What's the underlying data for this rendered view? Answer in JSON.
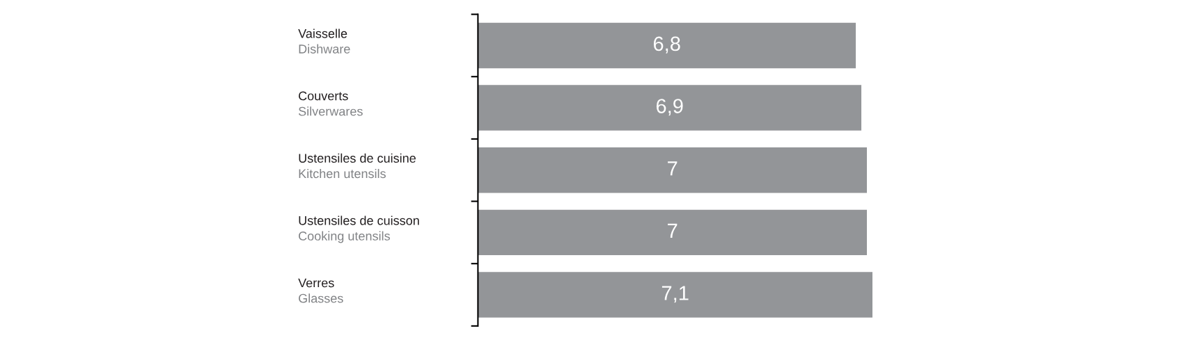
{
  "chart_data": {
    "type": "bar",
    "orientation": "horizontal",
    "categories": [
      "Vaisselle\nDishware",
      "Couverts\nSilverwares",
      "Ustensiles de cuisine\nKitchen utensils",
      "Ustensiles de cuisson\nCooking utensils",
      "Verres\nGlasses"
    ],
    "values": [
      6.8,
      6.9,
      7,
      7,
      7.1
    ],
    "value_labels": [
      "6,8",
      "6,9",
      "7",
      "7",
      "7,1"
    ],
    "color": "#939598",
    "grid": false,
    "legend": false
  }
}
